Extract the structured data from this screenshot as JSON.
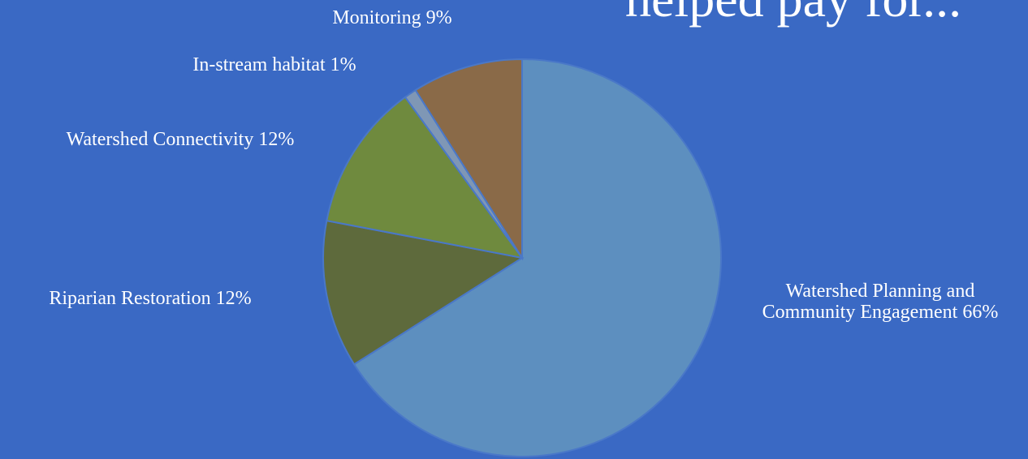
{
  "chart_data": {
    "type": "pie",
    "title": "helped pay for...",
    "categories": [
      "Watershed Planning and Community Engagement",
      "Riparian Restoration",
      "Watershed Connectivity",
      "In-stream habitat",
      "Monitoring"
    ],
    "values": [
      66,
      12,
      12,
      1,
      9
    ],
    "value_labels": [
      "66%",
      "12%",
      "12%",
      "1%",
      "9%"
    ],
    "colors": [
      "#5d8fbf",
      "#5e6a3c",
      "#6f8a3e",
      "#7f97b5",
      "#8a6a48"
    ]
  }
}
